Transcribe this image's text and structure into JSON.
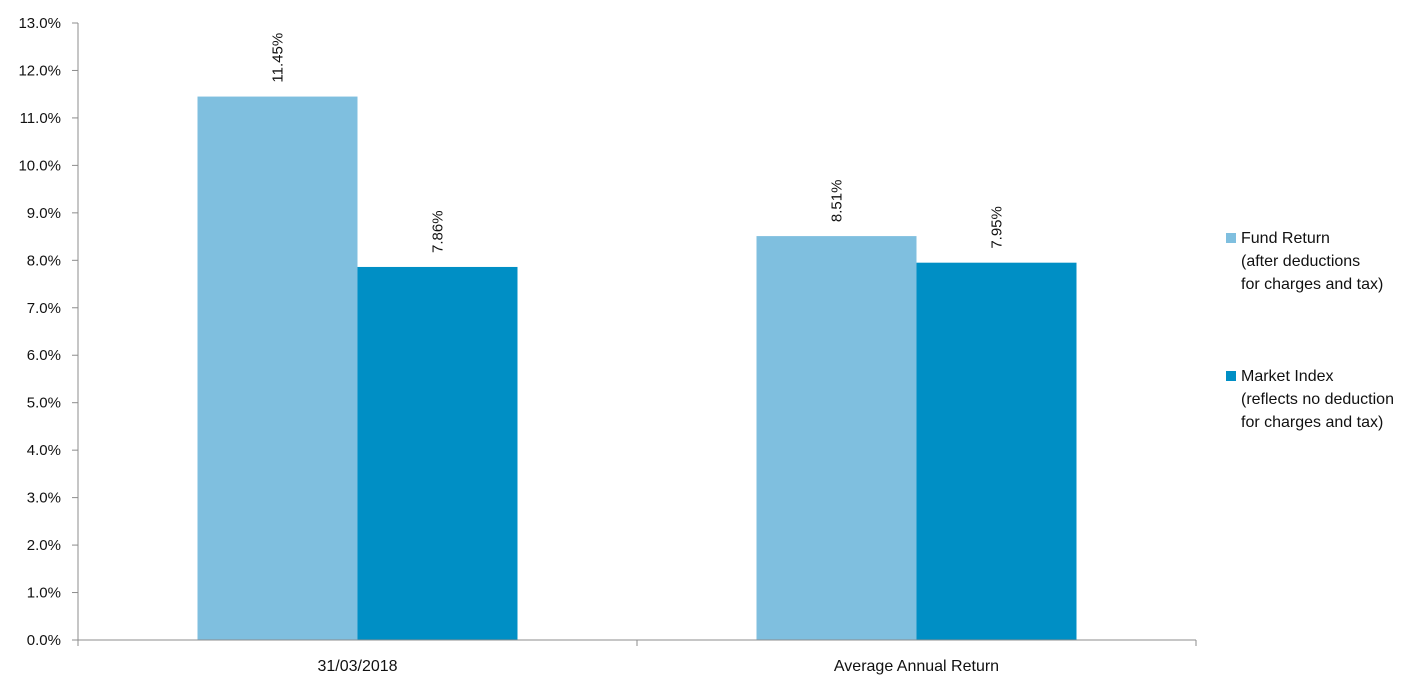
{
  "chart_data": {
    "type": "bar",
    "categories": [
      "31/03/2018",
      "Average Annual Return"
    ],
    "series": [
      {
        "name": "Fund Return",
        "legend_lines": [
          "Fund Return",
          "(after deductions",
          "for charges and tax)"
        ],
        "values": [
          11.45,
          8.51
        ],
        "labels": [
          "11.45%",
          "8.51%"
        ],
        "color": "#7fbfdf"
      },
      {
        "name": "Market Index",
        "legend_lines": [
          "Market Index",
          "(reflects no deduction",
          "for charges and tax)"
        ],
        "values": [
          7.86,
          7.95
        ],
        "labels": [
          "7.86%",
          "7.95%"
        ],
        "color": "#008fc5"
      }
    ],
    "ylim": [
      0,
      13
    ],
    "yticks": [
      "0.0%",
      "1.0%",
      "2.0%",
      "3.0%",
      "4.0%",
      "5.0%",
      "6.0%",
      "7.0%",
      "8.0%",
      "9.0%",
      "10.0%",
      "11.0%",
      "12.0%",
      "13.0%"
    ],
    "grid": false,
    "legend_position": "right",
    "axis_color": "#8c8c8c"
  }
}
